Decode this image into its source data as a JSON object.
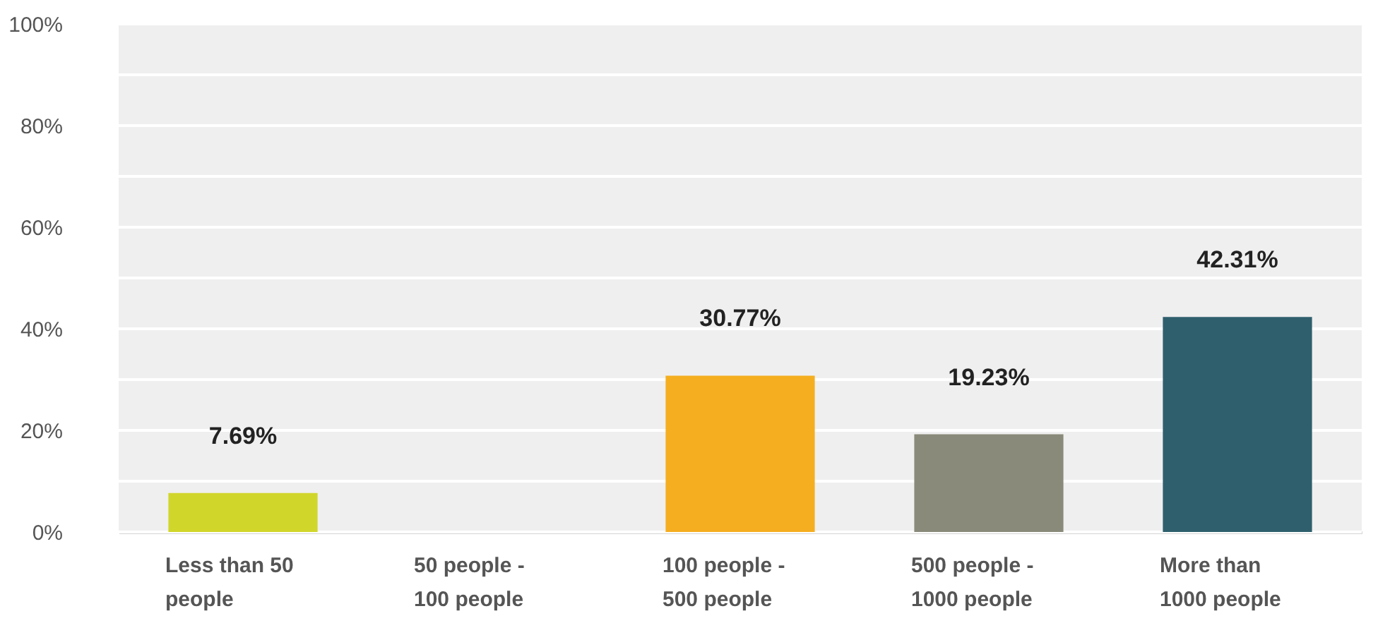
{
  "chart_data": {
    "type": "bar",
    "categories": [
      "Less than 50 people",
      "50 people - 100 people",
      "100 people - 500 people",
      "500 people - 1000 people",
      "More than 1000 people"
    ],
    "values": [
      7.69,
      0,
      30.77,
      19.23,
      42.31
    ],
    "colors": [
      "#d1d62b",
      null,
      "#f5ae1f",
      "#8a8a7a",
      "#2f5f6d"
    ],
    "value_labels": [
      "7.69%",
      null,
      "30.77%",
      "19.23%",
      "42.31%"
    ],
    "ylim": [
      0,
      100
    ],
    "yticks": [
      {
        "value": 0,
        "label": "0%"
      },
      {
        "value": 10,
        "label": null
      },
      {
        "value": 20,
        "label": "20%"
      },
      {
        "value": 30,
        "label": null
      },
      {
        "value": 40,
        "label": "40%"
      },
      {
        "value": 50,
        "label": null
      },
      {
        "value": 60,
        "label": "60%"
      },
      {
        "value": 70,
        "label": null
      },
      {
        "value": 80,
        "label": "80%"
      },
      {
        "value": 90,
        "label": null
      },
      {
        "value": 100,
        "label": "100%"
      }
    ],
    "grid": "y"
  }
}
